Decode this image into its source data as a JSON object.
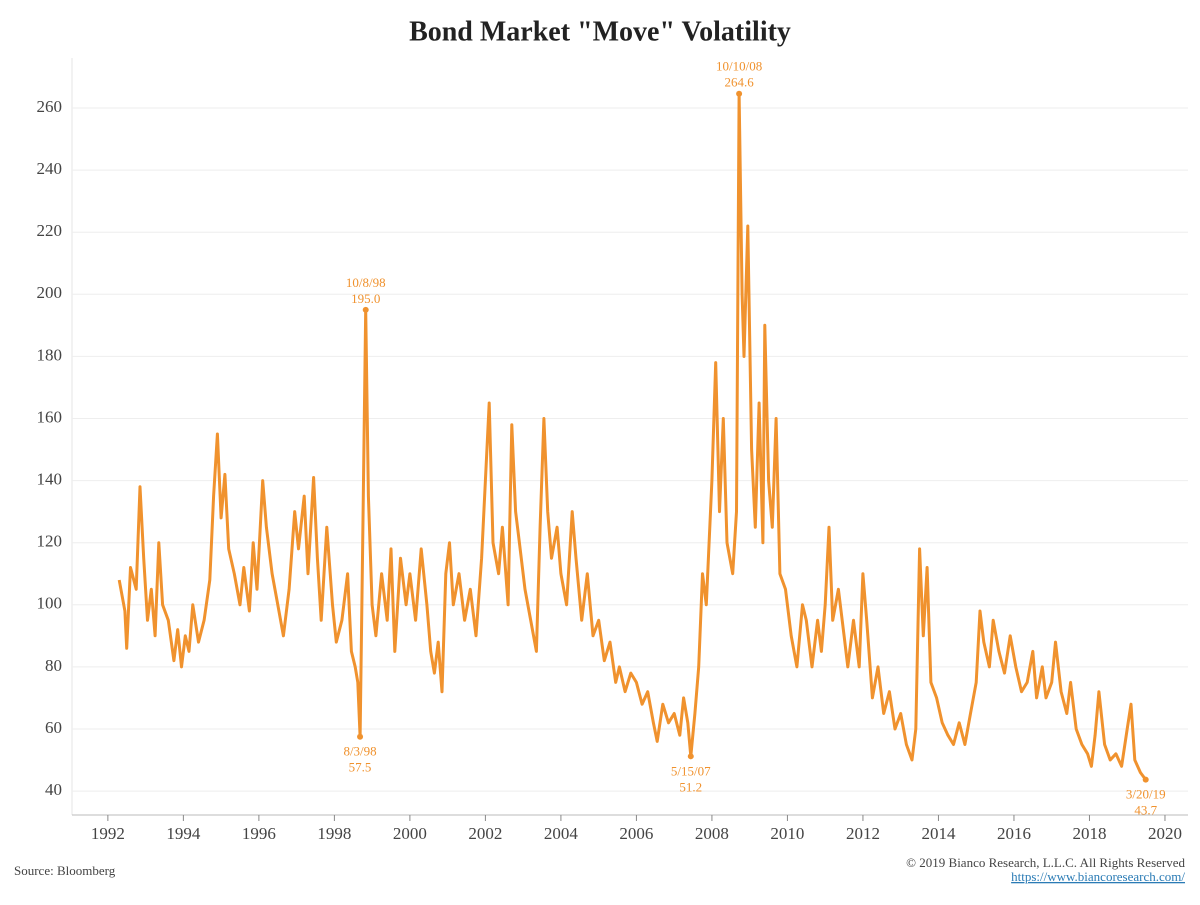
{
  "chart_data": {
    "type": "line",
    "title": "Bond Market \"Move\" Volatility",
    "source": "Source: Bloomberg",
    "copyright": "© 2019 Bianco Research, L.L.C. All Rights Reserved",
    "url": "https://www.biancoresearch.com/",
    "color": "#f0922e",
    "grid": true,
    "xlim": [
      1991.05,
      2020.61
    ],
    "ylim": [
      32.3,
      276.1
    ],
    "xticks": [
      1992,
      1994,
      1996,
      1998,
      2000,
      2002,
      2004,
      2006,
      2008,
      2010,
      2012,
      2014,
      2016,
      2018,
      2020
    ],
    "yticks": [
      40,
      60,
      80,
      100,
      120,
      140,
      160,
      180,
      200,
      220,
      240,
      260
    ],
    "x": [
      1992.3,
      1992.45,
      1992.5,
      1992.6,
      1992.75,
      1992.85,
      1992.95,
      1993.05,
      1993.15,
      1993.25,
      1993.35,
      1993.45,
      1993.6,
      1993.75,
      1993.85,
      1993.95,
      1994.05,
      1994.15,
      1994.25,
      1994.4,
      1994.55,
      1994.7,
      1994.8,
      1994.9,
      1995.0,
      1995.1,
      1995.2,
      1995.35,
      1995.5,
      1995.6,
      1995.75,
      1995.85,
      1995.95,
      1996.1,
      1996.2,
      1996.35,
      1996.5,
      1996.65,
      1996.8,
      1996.95,
      1997.05,
      1997.2,
      1997.3,
      1997.45,
      1997.55,
      1997.65,
      1997.8,
      1997.95,
      1998.05,
      1998.2,
      1998.35,
      1998.45,
      1998.55,
      1998.62,
      1998.68,
      1998.75,
      1998.83,
      1998.9,
      1999.0,
      1999.1,
      1999.25,
      1999.4,
      1999.5,
      1999.6,
      1999.75,
      1999.9,
      2000.0,
      2000.15,
      2000.3,
      2000.45,
      2000.55,
      2000.65,
      2000.75,
      2000.85,
      2000.95,
      2001.05,
      2001.15,
      2001.3,
      2001.45,
      2001.6,
      2001.75,
      2001.9,
      2002.0,
      2002.1,
      2002.2,
      2002.35,
      2002.45,
      2002.6,
      2002.7,
      2002.8,
      2002.9,
      2003.05,
      2003.2,
      2003.35,
      2003.45,
      2003.55,
      2003.65,
      2003.75,
      2003.9,
      2004.0,
      2004.15,
      2004.3,
      2004.4,
      2004.55,
      2004.7,
      2004.85,
      2005.0,
      2005.15,
      2005.3,
      2005.45,
      2005.55,
      2005.7,
      2005.85,
      2006.0,
      2006.15,
      2006.3,
      2006.45,
      2006.55,
      2006.7,
      2006.85,
      2007.0,
      2007.15,
      2007.25,
      2007.36,
      2007.44,
      2007.55,
      2007.65,
      2007.75,
      2007.85,
      2008.0,
      2008.1,
      2008.2,
      2008.3,
      2008.4,
      2008.55,
      2008.65,
      2008.72,
      2008.8,
      2008.85,
      2008.95,
      2009.05,
      2009.15,
      2009.25,
      2009.35,
      2009.4,
      2009.5,
      2009.6,
      2009.7,
      2009.8,
      2009.95,
      2010.1,
      2010.25,
      2010.4,
      2010.5,
      2010.65,
      2010.8,
      2010.9,
      2011.0,
      2011.1,
      2011.2,
      2011.35,
      2011.5,
      2011.6,
      2011.75,
      2011.9,
      2012.0,
      2012.1,
      2012.25,
      2012.4,
      2012.55,
      2012.7,
      2012.85,
      2013.0,
      2013.15,
      2013.3,
      2013.4,
      2013.5,
      2013.6,
      2013.7,
      2013.8,
      2013.95,
      2014.1,
      2014.25,
      2014.4,
      2014.55,
      2014.7,
      2014.85,
      2015.0,
      2015.1,
      2015.2,
      2015.35,
      2015.45,
      2015.6,
      2015.75,
      2015.9,
      2016.05,
      2016.2,
      2016.35,
      2016.5,
      2016.6,
      2016.75,
      2016.85,
      2017.0,
      2017.1,
      2017.25,
      2017.4,
      2017.5,
      2017.65,
      2017.8,
      2017.95,
      2018.05,
      2018.15,
      2018.25,
      2018.4,
      2018.55,
      2018.7,
      2018.85,
      2019.0,
      2019.1,
      2019.2,
      2019.35,
      2019.49
    ],
    "values": [
      108,
      98,
      86,
      112,
      105,
      138,
      115,
      95,
      105,
      90,
      120,
      100,
      95,
      82,
      92,
      80,
      90,
      85,
      100,
      88,
      95,
      108,
      135,
      155,
      128,
      142,
      118,
      110,
      100,
      112,
      98,
      120,
      105,
      140,
      125,
      110,
      100,
      90,
      105,
      130,
      118,
      135,
      110,
      141,
      115,
      95,
      125,
      100,
      88,
      95,
      110,
      85,
      80,
      75,
      57.5,
      120,
      195.0,
      135,
      100,
      90,
      110,
      95,
      118,
      85,
      115,
      100,
      110,
      95,
      118,
      100,
      85,
      78,
      88,
      72,
      110,
      120,
      100,
      110,
      95,
      105,
      90,
      115,
      140,
      165,
      120,
      110,
      125,
      100,
      158,
      130,
      120,
      105,
      95,
      85,
      125,
      160,
      130,
      115,
      125,
      110,
      100,
      130,
      115,
      95,
      110,
      90,
      95,
      82,
      88,
      75,
      80,
      72,
      78,
      75,
      68,
      72,
      62,
      56,
      68,
      62,
      65,
      58,
      70,
      62,
      51.2,
      65,
      80,
      110,
      100,
      140,
      178,
      130,
      160,
      120,
      110,
      130,
      264.6,
      200,
      180,
      222,
      150,
      125,
      165,
      120,
      190,
      140,
      125,
      160,
      110,
      105,
      90,
      80,
      100,
      95,
      80,
      95,
      85,
      100,
      125,
      95,
      105,
      90,
      80,
      95,
      80,
      110,
      95,
      70,
      80,
      65,
      72,
      60,
      65,
      55,
      50,
      60,
      118,
      90,
      112,
      75,
      70,
      62,
      58,
      55,
      62,
      55,
      65,
      75,
      98,
      88,
      80,
      95,
      85,
      78,
      90,
      80,
      72,
      75,
      85,
      70,
      80,
      70,
      75,
      88,
      72,
      65,
      75,
      60,
      55,
      52,
      48,
      58,
      72,
      55,
      50,
      52,
      48,
      60,
      68,
      50,
      46,
      43.7
    ],
    "annotations": [
      {
        "date": "10/8/98",
        "label": "195.0",
        "x": 1998.83,
        "y": 195.0
      },
      {
        "date": "8/3/98",
        "label": "57.5",
        "x": 1998.68,
        "y": 57.5
      },
      {
        "date": "10/10/08",
        "label": "264.6",
        "x": 2008.72,
        "y": 264.6
      },
      {
        "date": "5/15/07",
        "label": "51.2",
        "x": 2007.44,
        "y": 51.2
      },
      {
        "date": "3/20/19",
        "label": "43.7",
        "x": 2019.49,
        "y": 43.7
      }
    ]
  }
}
